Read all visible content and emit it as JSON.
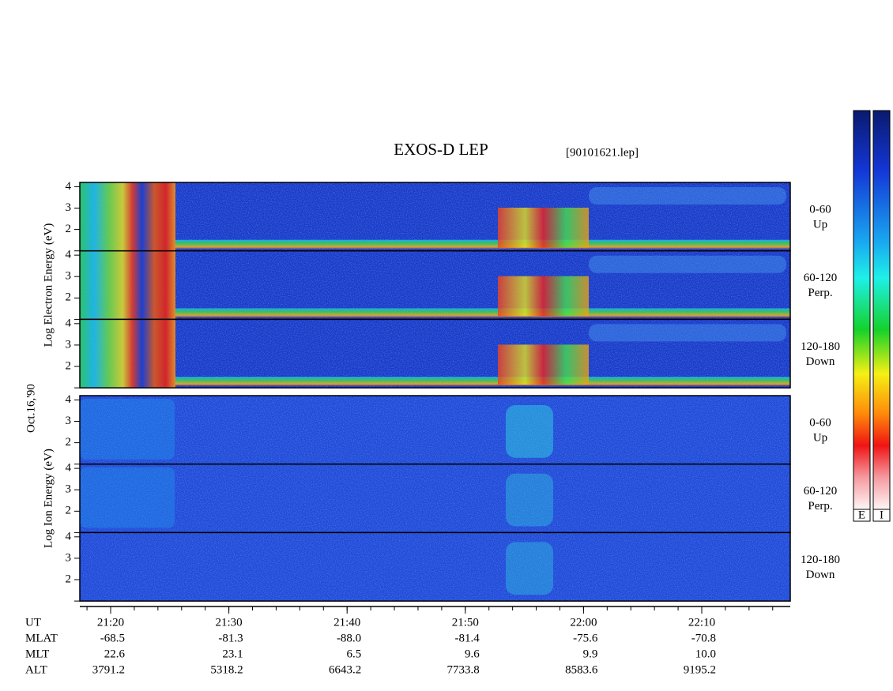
{
  "header": {
    "title": "EXOS-D LEP",
    "file": "[90101621.lep]"
  },
  "date": "Oct.16,'90",
  "energy_axis": {
    "ylim": [
      1,
      4.2
    ],
    "yticks": [
      {
        "value": 1,
        "label": null
      },
      2,
      3,
      4
    ]
  },
  "electron": {
    "ylabel": "Log Electron Energy (eV)",
    "panels": [
      {
        "pitch": "0-60",
        "direction": "Up"
      },
      {
        "pitch": "60-120",
        "direction": "Perp."
      },
      {
        "pitch": "120-180",
        "direction": "Down"
      }
    ]
  },
  "ion": {
    "ylabel": "Log Ion Energy (eV)",
    "panels": [
      {
        "pitch": "0-60",
        "direction": "Up"
      },
      {
        "pitch": "60-120",
        "direction": "Perp."
      },
      {
        "pitch": "120-180",
        "direction": "Down"
      }
    ]
  },
  "time_axis": {
    "rows": [
      "UT",
      "MLAT",
      "MLT",
      "ALT"
    ],
    "ticks": [
      [
        "21:20",
        "-68.5",
        "22.6",
        "3791.2"
      ],
      [
        "21:30",
        "-81.3",
        "23.1",
        "5318.2"
      ],
      [
        "21:40",
        "-88.0",
        "6.5",
        "6643.2"
      ],
      [
        "21:50",
        "-81.4",
        "9.6",
        "7733.8"
      ],
      [
        "22:00",
        "-75.6",
        "9.9",
        "8583.6"
      ],
      [
        "22:10",
        "-70.8",
        "10.0",
        "9195.2"
      ]
    ]
  },
  "colorbar": {
    "labels": [
      "E",
      "I"
    ]
  }
}
